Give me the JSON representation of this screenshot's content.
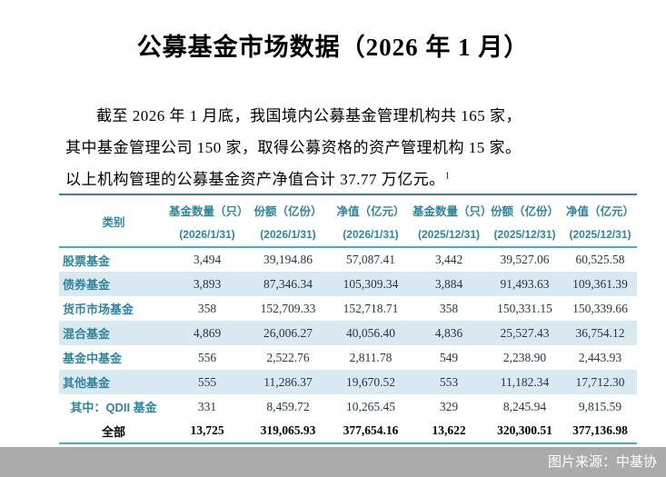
{
  "title": "公募基金市场数据（2026 年 1 月）",
  "paragraph": {
    "lines": [
      "截至 2026 年 1 月底，我国境内公募基金管理机构共 165 家，",
      "其中基金管理公司 150 家，取得公募资格的资产管理机构 15 家。",
      "以上机构管理的公募基金资产净值合计 37.77 万亿元。"
    ],
    "footnote_marker": "1"
  },
  "table": {
    "category_header": "类别",
    "columns": [
      {
        "label": "基金数量（只）",
        "date": "(2026/1/31)"
      },
      {
        "label": "份额（亿份）",
        "date": "(2026/1/31)"
      },
      {
        "label": "净值（亿元）",
        "date": "(2026/1/31)"
      },
      {
        "label": "基金数量（只）",
        "date": "(2025/12/31)"
      },
      {
        "label": "份额（亿份）",
        "date": "(2025/12/31)"
      },
      {
        "label": "净值（亿元）",
        "date": "(2025/12/31)"
      }
    ],
    "rows": [
      {
        "category": "股票基金",
        "align": "left",
        "shaded": false,
        "bold": false,
        "values": [
          "3,494",
          "39,194.86",
          "57,087.41",
          "3,442",
          "39,527.06",
          "60,525.58"
        ]
      },
      {
        "category": "债券基金",
        "align": "left",
        "shaded": true,
        "bold": false,
        "values": [
          "3,893",
          "87,346.34",
          "105,309.34",
          "3,884",
          "91,493.63",
          "109,361.39"
        ]
      },
      {
        "category": "货币市场基金",
        "align": "left",
        "shaded": false,
        "bold": false,
        "values": [
          "358",
          "152,709.33",
          "152,718.71",
          "358",
          "150,331.15",
          "150,339.66"
        ]
      },
      {
        "category": "混合基金",
        "align": "left",
        "shaded": true,
        "bold": false,
        "values": [
          "4,869",
          "26,006.27",
          "40,056.40",
          "4,836",
          "25,527.43",
          "36,754.12"
        ]
      },
      {
        "category": "基金中基金",
        "align": "left",
        "shaded": false,
        "bold": false,
        "values": [
          "556",
          "2,522.76",
          "2,811.78",
          "549",
          "2,238.90",
          "2,443.93"
        ]
      },
      {
        "category": "其他基金",
        "align": "left",
        "shaded": true,
        "bold": false,
        "values": [
          "555",
          "11,286.37",
          "19,670.52",
          "553",
          "11,182.34",
          "17,712.30"
        ]
      },
      {
        "category": "其中：QDII 基金",
        "align": "center",
        "shaded": false,
        "bold": false,
        "values": [
          "331",
          "8,459.72",
          "10,265.45",
          "329",
          "8,245.94",
          "9,815.59"
        ]
      },
      {
        "category": "全部",
        "align": "center",
        "shaded": false,
        "bold": true,
        "values": [
          "13,725",
          "319,065.93",
          "377,654.16",
          "13,622",
          "320,300.51",
          "377,136.98"
        ]
      }
    ]
  },
  "footer": {
    "source_label": "图片来源：中基协"
  },
  "colors": {
    "accent_teal_text": "#31849B",
    "table_border_teal": "#4BACC6",
    "row_stripe_blue": "#D9E9F1",
    "number_text": "#253746",
    "footer_gray": "#ABABAB",
    "footer_text": "#ffffff"
  }
}
